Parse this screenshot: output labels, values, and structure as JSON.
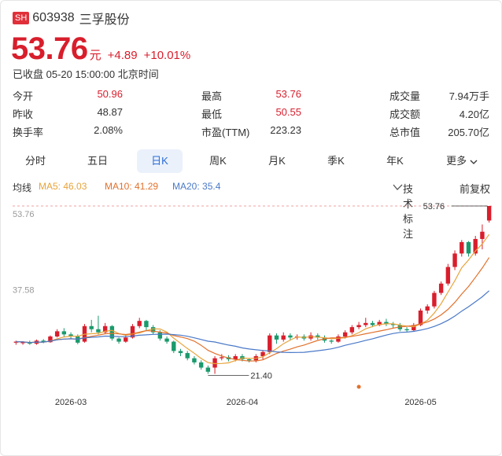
{
  "header": {
    "market_badge": "SH",
    "code": "603938",
    "name": "三孚股份",
    "price": "53.76",
    "unit": "元",
    "change": "+4.89",
    "change_pct": "+10.01%",
    "status": "已收盘 05-20 15:00:00 北京时间"
  },
  "stats": [
    [
      {
        "label": "今开",
        "value": "50.96",
        "color": "red"
      },
      {
        "label": "最高",
        "value": "53.76",
        "color": "red"
      },
      {
        "label": "成交量",
        "value": "7.94万手",
        "color": "dark"
      }
    ],
    [
      {
        "label": "昨收",
        "value": "48.87",
        "color": "dark"
      },
      {
        "label": "最低",
        "value": "50.55",
        "color": "red"
      },
      {
        "label": "成交额",
        "value": "4.20亿",
        "color": "dark"
      }
    ],
    [
      {
        "label": "换手率",
        "value": "2.08%",
        "color": "dark"
      },
      {
        "label": "市盈(TTM)",
        "value": "223.23",
        "color": "dark"
      },
      {
        "label": "总市值",
        "value": "205.70亿",
        "color": "dark"
      }
    ]
  ],
  "tabs": [
    "分时",
    "五日",
    "日K",
    "周K",
    "月K",
    "季K",
    "年K",
    "更多"
  ],
  "active_tab": "日K",
  "ma": {
    "title": "均线",
    "ma5": "MA5: 46.03",
    "ma10": "MA10: 41.29",
    "ma20": "MA20: 35.4",
    "tech_label": "技术标注",
    "fq_label": "前复权"
  },
  "colors": {
    "up": "#d81e2c",
    "down": "#1a9a6c",
    "ma5": "#e8a33a",
    "ma10": "#e2712c",
    "ma20": "#4a79c8",
    "accent": "#2b6bd6"
  },
  "chart_data": {
    "type": "candlestick",
    "y_ticks": [
      "53.76",
      "37.58"
    ],
    "x_ticks": [
      "2026-03",
      "2026-04",
      "2026-05"
    ],
    "high_marker": "53.76",
    "low_marker": "21.40",
    "candles": [
      [
        27.4,
        27.6,
        27.0,
        27.8
      ],
      [
        27.3,
        27.5,
        27.0,
        27.7
      ],
      [
        27.5,
        27.2,
        27.0,
        27.8
      ],
      [
        27.2,
        27.8,
        27.0,
        28.0
      ],
      [
        27.8,
        27.5,
        27.3,
        28.1
      ],
      [
        27.5,
        28.6,
        27.4,
        28.8
      ],
      [
        28.6,
        29.6,
        28.4,
        30.0
      ],
      [
        29.6,
        29.0,
        28.6,
        30.2
      ],
      [
        29.0,
        28.6,
        28.2,
        29.4
      ],
      [
        28.6,
        27.4,
        27.1,
        29.0
      ],
      [
        27.6,
        30.6,
        27.4,
        31.0
      ],
      [
        30.6,
        30.0,
        29.4,
        31.8
      ],
      [
        30.0,
        29.4,
        29.0,
        32.6
      ],
      [
        29.4,
        30.6,
        29.2,
        31.2
      ],
      [
        30.6,
        28.2,
        27.8,
        30.8
      ],
      [
        28.2,
        27.6,
        27.2,
        28.4
      ],
      [
        27.6,
        28.4,
        27.4,
        28.8
      ],
      [
        28.4,
        30.6,
        28.2,
        31.0
      ],
      [
        30.6,
        31.6,
        30.2,
        32.2
      ],
      [
        31.6,
        30.4,
        29.6,
        31.8
      ],
      [
        30.4,
        29.4,
        29.0,
        30.8
      ],
      [
        29.4,
        28.2,
        27.8,
        29.8
      ],
      [
        28.2,
        27.6,
        27.2,
        28.6
      ],
      [
        27.6,
        25.8,
        25.4,
        27.8
      ],
      [
        25.8,
        25.4,
        24.8,
        26.2
      ],
      [
        25.4,
        24.4,
        24.0,
        25.8
      ],
      [
        24.4,
        23.6,
        23.2,
        24.8
      ],
      [
        23.6,
        22.6,
        22.2,
        24.0
      ],
      [
        22.6,
        21.8,
        21.4,
        23.0
      ],
      [
        22.6,
        24.4,
        21.4,
        24.8
      ],
      [
        24.4,
        24.6,
        24.0,
        25.2
      ],
      [
        24.6,
        24.2,
        23.8,
        25.0
      ],
      [
        24.2,
        24.8,
        23.8,
        25.2
      ],
      [
        24.8,
        24.2,
        23.8,
        25.2
      ],
      [
        24.2,
        24.0,
        23.6,
        24.4
      ],
      [
        24.0,
        24.8,
        23.6,
        25.2
      ],
      [
        24.8,
        25.6,
        24.2,
        26.0
      ],
      [
        25.6,
        28.8,
        25.2,
        29.2
      ],
      [
        28.8,
        28.0,
        27.2,
        29.2
      ],
      [
        28.0,
        28.8,
        27.6,
        29.4
      ],
      [
        28.8,
        28.4,
        27.8,
        29.2
      ],
      [
        28.4,
        28.6,
        28.0,
        29.0
      ],
      [
        28.6,
        28.2,
        27.8,
        29.0
      ],
      [
        28.2,
        28.8,
        27.8,
        29.4
      ],
      [
        28.8,
        28.4,
        28.0,
        29.2
      ],
      [
        28.4,
        27.8,
        27.4,
        28.8
      ],
      [
        27.8,
        27.6,
        27.2,
        28.0
      ],
      [
        27.6,
        28.6,
        27.4,
        29.0
      ],
      [
        28.6,
        29.4,
        28.2,
        29.8
      ],
      [
        29.4,
        30.4,
        29.0,
        30.8
      ],
      [
        30.4,
        30.8,
        30.0,
        31.4
      ],
      [
        30.8,
        31.2,
        30.4,
        32.2
      ],
      [
        31.2,
        30.8,
        30.4,
        31.6
      ],
      [
        30.8,
        31.4,
        30.6,
        31.8
      ],
      [
        31.4,
        31.0,
        30.6,
        32.0
      ],
      [
        31.0,
        30.8,
        30.2,
        31.4
      ],
      [
        30.8,
        30.0,
        29.6,
        31.2
      ],
      [
        30.0,
        29.8,
        29.4,
        30.4
      ],
      [
        29.8,
        30.8,
        29.6,
        31.2
      ],
      [
        30.8,
        33.6,
        30.6,
        34.0
      ],
      [
        33.6,
        34.4,
        33.0,
        34.8
      ],
      [
        34.4,
        37.0,
        34.0,
        37.4
      ],
      [
        37.0,
        38.8,
        36.6,
        39.2
      ],
      [
        38.8,
        42.0,
        38.4,
        42.6
      ],
      [
        42.0,
        44.6,
        41.4,
        45.2
      ],
      [
        44.6,
        46.8,
        44.0,
        47.2
      ],
      [
        46.8,
        44.6,
        44.0,
        47.0
      ],
      [
        44.6,
        47.4,
        44.2,
        48.0
      ],
      [
        47.4,
        48.8,
        45.4,
        50.2
      ],
      [
        50.96,
        53.76,
        50.55,
        53.76
      ]
    ]
  }
}
